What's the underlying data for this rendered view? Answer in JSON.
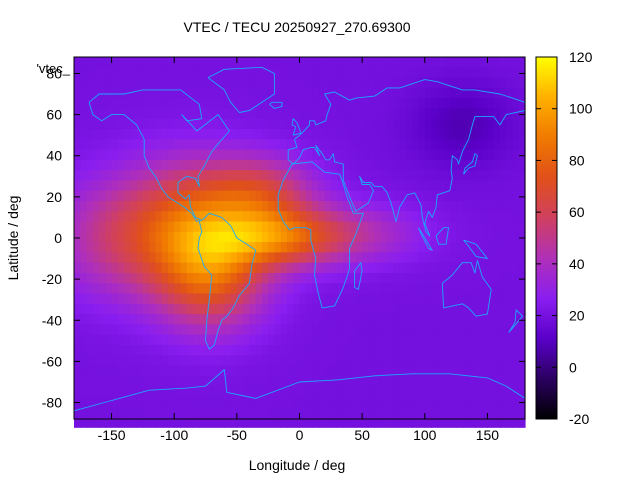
{
  "chart_data": {
    "type": "heatmap",
    "title": "VTEC / TECU 20250927_270.69300",
    "xlabel": "Longitude / deg",
    "ylabel": "Latitude / deg",
    "series_label": "'vtec_",
    "xlim": [
      -180,
      180
    ],
    "ylim": [
      -88,
      88
    ],
    "x_ticks": [
      -150,
      -100,
      -50,
      0,
      50,
      100,
      150
    ],
    "x_tick_labels": [
      "-150",
      "-100",
      "-50",
      "0",
      "50",
      "100",
      "150"
    ],
    "y_ticks": [
      -80,
      -60,
      -40,
      -20,
      0,
      20,
      40,
      60,
      80
    ],
    "y_tick_labels": [
      "-80",
      "-60",
      "-40",
      "-20",
      "0",
      "20",
      "40",
      "60",
      "80"
    ],
    "colorbar": {
      "range": [
        -20,
        120
      ],
      "ticks": [
        -20,
        0,
        20,
        40,
        60,
        80,
        100,
        120
      ],
      "tick_labels": [
        "-20",
        "0",
        "20",
        "40",
        "60",
        "80",
        "100",
        "120"
      ],
      "palette": [
        "#000000",
        "#2a0060",
        "#5a00c8",
        "#8a1ef0",
        "#b030b8",
        "#d04060",
        "#e0501a",
        "#f07a00",
        "#ffb000",
        "#ffff00"
      ]
    },
    "field_model": {
      "base_tecu": 20,
      "components": [
        {
          "lon": -85,
          "lat": 5,
          "amp_tecu": 55,
          "sigma_lon": 38,
          "sigma_lat": 22
        },
        {
          "lon": -70,
          "lat": -20,
          "amp_tecu": 40,
          "sigma_lon": 30,
          "sigma_lat": 18
        },
        {
          "lon": -20,
          "lat": 0,
          "amp_tecu": 50,
          "sigma_lon": 35,
          "sigma_lat": 10
        },
        {
          "lon": -30,
          "lat": 22,
          "amp_tecu": 35,
          "sigma_lon": 30,
          "sigma_lat": 12
        },
        {
          "lon": 40,
          "lat": 2,
          "amp_tecu": 22,
          "sigma_lon": 40,
          "sigma_lat": 10
        },
        {
          "lon": -150,
          "lat": 0,
          "amp_tecu": 25,
          "sigma_lon": 35,
          "sigma_lat": 20
        },
        {
          "lon": 130,
          "lat": 55,
          "amp_tecu": -12,
          "sigma_lon": 30,
          "sigma_lat": 15
        }
      ]
    }
  },
  "coastlines": [
    {
      "name": "north-america",
      "points": [
        [
          -168,
          66
        ],
        [
          -160,
          70
        ],
        [
          -140,
          70
        ],
        [
          -125,
          72
        ],
        [
          -95,
          72
        ],
        [
          -80,
          65
        ],
        [
          -78,
          58
        ],
        [
          -90,
          57
        ],
        [
          -94,
          60
        ],
        [
          -82,
          52
        ],
        [
          -65,
          60
        ],
        [
          -56,
          52
        ],
        [
          -66,
          45
        ],
        [
          -70,
          42
        ],
        [
          -76,
          35
        ],
        [
          -81,
          30
        ],
        [
          -80,
          25
        ],
        [
          -83,
          29
        ],
        [
          -90,
          30
        ],
        [
          -97,
          27
        ],
        [
          -97,
          22
        ],
        [
          -91,
          19
        ],
        [
          -88,
          21
        ],
        [
          -87,
          15
        ],
        [
          -83,
          10
        ],
        [
          -79,
          9
        ],
        [
          -82,
          8
        ],
        [
          -86,
          12
        ],
        [
          -92,
          15
        ],
        [
          -105,
          20
        ],
        [
          -110,
          24
        ],
        [
          -115,
          30
        ],
        [
          -120,
          34
        ],
        [
          -124,
          40
        ],
        [
          -124,
          48
        ],
        [
          -130,
          55
        ],
        [
          -140,
          60
        ],
        [
          -150,
          60
        ],
        [
          -158,
          57
        ],
        [
          -165,
          60
        ],
        [
          -168,
          66
        ]
      ]
    },
    {
      "name": "greenland",
      "points": [
        [
          -73,
          78
        ],
        [
          -60,
          82
        ],
        [
          -30,
          83
        ],
        [
          -20,
          80
        ],
        [
          -20,
          70
        ],
        [
          -40,
          62
        ],
        [
          -48,
          61
        ],
        [
          -55,
          66
        ],
        [
          -60,
          72
        ],
        [
          -73,
          78
        ]
      ]
    },
    {
      "name": "south-america",
      "points": [
        [
          -80,
          8
        ],
        [
          -77,
          9
        ],
        [
          -72,
          12
        ],
        [
          -62,
          10
        ],
        [
          -55,
          6
        ],
        [
          -50,
          0
        ],
        [
          -42,
          -3
        ],
        [
          -35,
          -6
        ],
        [
          -38,
          -13
        ],
        [
          -40,
          -22
        ],
        [
          -48,
          -28
        ],
        [
          -53,
          -34
        ],
        [
          -58,
          -38
        ],
        [
          -62,
          -40
        ],
        [
          -65,
          -45
        ],
        [
          -68,
          -52
        ],
        [
          -72,
          -54
        ],
        [
          -75,
          -50
        ],
        [
          -74,
          -40
        ],
        [
          -72,
          -30
        ],
        [
          -70,
          -18
        ],
        [
          -76,
          -14
        ],
        [
          -81,
          -5
        ],
        [
          -80,
          0
        ],
        [
          -78,
          3
        ],
        [
          -80,
          8
        ]
      ]
    },
    {
      "name": "africa",
      "points": [
        [
          -17,
          21
        ],
        [
          -13,
          28
        ],
        [
          -6,
          36
        ],
        [
          10,
          37
        ],
        [
          20,
          32
        ],
        [
          32,
          31
        ],
        [
          34,
          28
        ],
        [
          38,
          20
        ],
        [
          43,
          12
        ],
        [
          51,
          12
        ],
        [
          45,
          2
        ],
        [
          40,
          -5
        ],
        [
          40,
          -15
        ],
        [
          35,
          -24
        ],
        [
          28,
          -33
        ],
        [
          18,
          -34
        ],
        [
          15,
          -27
        ],
        [
          12,
          -18
        ],
        [
          13,
          -10
        ],
        [
          9,
          -1
        ],
        [
          9,
          4
        ],
        [
          5,
          5
        ],
        [
          -4,
          5
        ],
        [
          -8,
          4
        ],
        [
          -13,
          8
        ],
        [
          -17,
          14
        ],
        [
          -17,
          21
        ]
      ]
    },
    {
      "name": "eurasia",
      "points": [
        [
          -9,
          38
        ],
        [
          -9,
          43
        ],
        [
          -2,
          44
        ],
        [
          -4,
          48
        ],
        [
          2,
          51
        ],
        [
          8,
          55
        ],
        [
          8,
          57
        ],
        [
          12,
          57
        ],
        [
          13,
          55
        ],
        [
          21,
          57
        ],
        [
          22,
          60
        ],
        [
          25,
          65
        ],
        [
          20,
          70
        ],
        [
          28,
          71
        ],
        [
          40,
          67
        ],
        [
          45,
          68
        ],
        [
          60,
          69
        ],
        [
          70,
          73
        ],
        [
          80,
          73
        ],
        [
          100,
          77
        ],
        [
          110,
          76
        ],
        [
          130,
          72
        ],
        [
          140,
          72
        ],
        [
          160,
          70
        ],
        [
          170,
          68
        ],
        [
          180,
          66
        ],
        [
          180,
          62
        ],
        [
          165,
          60
        ],
        [
          160,
          55
        ],
        [
          155,
          59
        ],
        [
          140,
          59
        ],
        [
          138,
          55
        ],
        [
          135,
          48
        ],
        [
          130,
          42
        ],
        [
          127,
          36
        ],
        [
          126,
          38
        ],
        [
          122,
          40
        ],
        [
          121,
          33
        ],
        [
          122,
          29
        ],
        [
          120,
          23
        ],
        [
          110,
          21
        ],
        [
          109,
          15
        ],
        [
          106,
          10
        ],
        [
          103,
          13
        ],
        [
          100,
          7
        ],
        [
          104,
          1
        ],
        [
          101,
          3
        ],
        [
          98,
          10
        ],
        [
          97,
          16
        ],
        [
          92,
          22
        ],
        [
          86,
          21
        ],
        [
          80,
          15
        ],
        [
          77,
          8
        ],
        [
          73,
          17
        ],
        [
          70,
          22
        ],
        [
          66,
          25
        ],
        [
          60,
          25
        ],
        [
          57,
          27
        ],
        [
          51,
          27
        ],
        [
          48,
          30
        ],
        [
          50,
          26
        ],
        [
          56,
          26
        ],
        [
          59,
          23
        ],
        [
          55,
          17
        ],
        [
          45,
          13
        ],
        [
          42,
          17
        ],
        [
          35,
          28
        ],
        [
          35,
          36
        ],
        [
          28,
          37
        ],
        [
          27,
          41
        ],
        [
          24,
          38
        ],
        [
          21,
          38
        ],
        [
          18,
          41
        ],
        [
          13,
          45
        ],
        [
          16,
          40
        ],
        [
          12,
          44
        ],
        [
          9,
          44
        ],
        [
          3,
          43
        ],
        [
          0,
          39
        ],
        [
          -5,
          36
        ],
        [
          -9,
          38
        ]
      ]
    },
    {
      "name": "great-britain",
      "points": [
        [
          -5,
          50
        ],
        [
          1,
          51
        ],
        [
          0,
          53
        ],
        [
          -2,
          56
        ],
        [
          -5,
          58
        ],
        [
          -6,
          55
        ],
        [
          -3,
          54
        ],
        [
          -5,
          50
        ]
      ]
    },
    {
      "name": "iceland",
      "points": [
        [
          -24,
          65
        ],
        [
          -22,
          66
        ],
        [
          -14,
          66
        ],
        [
          -14,
          64
        ],
        [
          -20,
          63
        ],
        [
          -24,
          65
        ]
      ]
    },
    {
      "name": "japan",
      "points": [
        [
          131,
          31
        ],
        [
          135,
          34
        ],
        [
          140,
          35
        ],
        [
          142,
          40
        ],
        [
          140,
          41
        ],
        [
          138,
          37
        ],
        [
          132,
          34
        ],
        [
          131,
          31
        ]
      ]
    },
    {
      "name": "madagascar",
      "points": [
        [
          44,
          -16
        ],
        [
          49,
          -12
        ],
        [
          50,
          -16
        ],
        [
          47,
          -25
        ],
        [
          44,
          -24
        ],
        [
          44,
          -16
        ]
      ]
    },
    {
      "name": "borneo",
      "points": [
        [
          109,
          1
        ],
        [
          115,
          5
        ],
        [
          119,
          5
        ],
        [
          117,
          -3
        ],
        [
          111,
          -3
        ],
        [
          109,
          1
        ]
      ]
    },
    {
      "name": "sumatra",
      "points": [
        [
          95,
          5
        ],
        [
          100,
          0
        ],
        [
          106,
          -6
        ],
        [
          103,
          -5
        ],
        [
          97,
          2
        ],
        [
          95,
          5
        ]
      ]
    },
    {
      "name": "new-guinea",
      "points": [
        [
          131,
          -1
        ],
        [
          141,
          -3
        ],
        [
          150,
          -10
        ],
        [
          141,
          -9
        ],
        [
          135,
          -4
        ],
        [
          131,
          -1
        ]
      ]
    },
    {
      "name": "australia",
      "points": [
        [
          114,
          -22
        ],
        [
          122,
          -18
        ],
        [
          130,
          -12
        ],
        [
          137,
          -12
        ],
        [
          140,
          -17
        ],
        [
          142,
          -11
        ],
        [
          146,
          -19
        ],
        [
          153,
          -25
        ],
        [
          150,
          -37
        ],
        [
          141,
          -38
        ],
        [
          135,
          -34
        ],
        [
          130,
          -32
        ],
        [
          115,
          -34
        ],
        [
          114,
          -22
        ]
      ]
    },
    {
      "name": "new-zealand",
      "points": [
        [
          167,
          -46
        ],
        [
          174,
          -41
        ],
        [
          178,
          -38
        ],
        [
          173,
          -35
        ],
        [
          172,
          -41
        ],
        [
          167,
          -46
        ]
      ]
    },
    {
      "name": "antarctica",
      "points": [
        [
          -180,
          -84
        ],
        [
          -150,
          -79
        ],
        [
          -120,
          -74
        ],
        [
          -90,
          -73
        ],
        [
          -75,
          -72
        ],
        [
          -60,
          -64
        ],
        [
          -58,
          -75
        ],
        [
          -35,
          -78
        ],
        [
          0,
          -70
        ],
        [
          30,
          -69
        ],
        [
          60,
          -67
        ],
        [
          90,
          -66
        ],
        [
          120,
          -66
        ],
        [
          150,
          -68
        ],
        [
          165,
          -72
        ],
        [
          180,
          -78
        ],
        [
          180,
          -88
        ],
        [
          -180,
          -88
        ],
        [
          -180,
          -84
        ]
      ]
    }
  ]
}
